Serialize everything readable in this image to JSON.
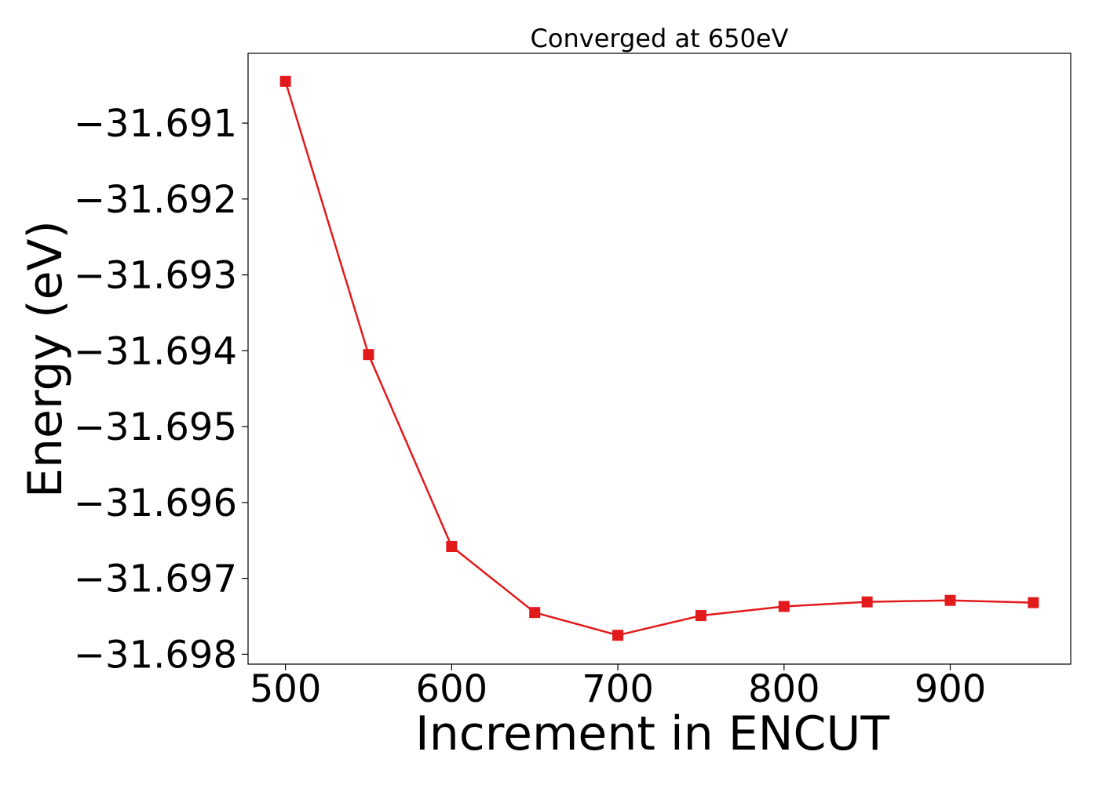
{
  "chart_data": {
    "type": "line",
    "title": "Converged at 650eV",
    "xlabel": "Increment in ENCUT",
    "ylabel": "Energy (eV)",
    "x": [
      500,
      550,
      600,
      650,
      700,
      750,
      800,
      850,
      900,
      950
    ],
    "series": [
      {
        "values": [
          -31.69045,
          -31.69405,
          -31.69658,
          -31.69745,
          -31.69775,
          -31.69749,
          -31.69737,
          -31.69731,
          -31.69729,
          -31.69732
        ],
        "color": "#e31a1c",
        "marker": "square"
      }
    ],
    "xlim": [
      477.5,
      972.5
    ],
    "ylim": [
      -31.69813,
      -31.69008
    ],
    "xticks": [
      500,
      600,
      700,
      800,
      900
    ],
    "xtick_labels": [
      "500",
      "600",
      "700",
      "800",
      "900"
    ],
    "yticks": [
      -31.691,
      -31.692,
      -31.693,
      -31.694,
      -31.695,
      -31.696,
      -31.697,
      -31.698
    ],
    "ytick_labels": [
      "−31.691",
      "−31.692",
      "−31.693",
      "−31.694",
      "−31.695",
      "−31.696",
      "−31.697",
      "−31.698"
    ],
    "grid": false,
    "legend": "none"
  }
}
